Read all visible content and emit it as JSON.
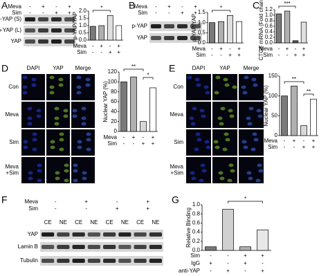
{
  "panels": {
    "A": {
      "letter": "A",
      "blot_conditions": [
        {
          "name": "Meva",
          "signs": [
            "-",
            "+",
            "-",
            "+"
          ]
        },
        {
          "name": "Sim",
          "signs": [
            "-",
            "-",
            "+",
            "+"
          ]
        }
      ],
      "blot_rows": [
        "p-YAP (S)",
        "p-YAP (L)",
        "YAP"
      ]
    },
    "B": {
      "letter": "B",
      "blot_conditions": [
        {
          "name": "Meva",
          "signs": [
            "-",
            "+",
            "-",
            "+"
          ]
        },
        {
          "name": "Sim",
          "signs": [
            "-",
            "-",
            "+",
            "+"
          ]
        }
      ],
      "blot_rows": [
        "p-YAP",
        "YAP"
      ]
    },
    "C": {
      "letter": "C"
    },
    "D": {
      "letter": "D",
      "columns": [
        "DAPI",
        "YAP",
        "Merge"
      ],
      "rows": [
        [
          "Con"
        ],
        [
          "Meva"
        ],
        [
          "Sim"
        ],
        [
          "Meva",
          "+Sim"
        ]
      ]
    },
    "E": {
      "letter": "E",
      "columns": [
        "DAPI",
        "YAP",
        "Merge"
      ],
      "rows": [
        [
          "Con"
        ],
        [
          "Meva"
        ],
        [
          "Sim"
        ],
        [
          "Meva",
          "+Sim"
        ]
      ]
    },
    "F": {
      "letter": "F",
      "blot_conditions": [
        {
          "name": "Meva",
          "signs": [
            "-",
            "+",
            "-",
            "+"
          ]
        },
        {
          "name": "Sim",
          "signs": [
            "-",
            "-",
            "+",
            "+"
          ]
        }
      ],
      "column_labels": [
        "CE",
        "NE",
        "CE",
        "NE",
        "CE",
        "NE",
        "CE",
        "NE"
      ],
      "blot_rows": [
        "YAP",
        "Lamin B",
        "Tubulin"
      ]
    },
    "G": {
      "letter": "G"
    }
  },
  "chart_data": [
    {
      "type": "bar",
      "ylabel": "p-YAP/YAP",
      "values": [
        0.95,
        1.0,
        1.7,
        1.0
      ],
      "colors": [
        "#7a7a7a",
        "#b0b0b0",
        "#e0e0e0",
        "#ffffff"
      ],
      "ylim": [
        0,
        2
      ],
      "yticks": [
        {
          "value": 0,
          "label": "0.0"
        },
        0.5,
        {
          "value": 1,
          "label": "1.0"
        },
        1.5,
        {
          "value": 2,
          "label": "2.0"
        }
      ],
      "conditions": [
        {
          "name": "Meva",
          "signs": [
            "-",
            "+",
            "-",
            "+"
          ]
        },
        {
          "name": "Sim",
          "signs": [
            "-",
            "-",
            "+",
            "+"
          ]
        }
      ],
      "annotations": [
        "*"
      ]
    },
    {
      "type": "bar",
      "ylabel": "p-YAP/YAP",
      "values": [
        1.0,
        1.05,
        1.35,
        1.05
      ],
      "colors": [
        "#7a7a7a",
        "#b0b0b0",
        "#e0e0e0",
        "#ffffff"
      ],
      "ylim": [
        0,
        1.5
      ],
      "yticks": [
        {
          "value": 0,
          "label": "0.0"
        },
        0.5,
        {
          "value": 1,
          "label": "1.0"
        },
        1.5
      ],
      "conditions": [
        {
          "name": "Meva",
          "signs": [
            "-",
            "+",
            "-",
            "+"
          ]
        },
        {
          "name": "Sim",
          "signs": [
            "-",
            "-",
            "+",
            "+"
          ]
        }
      ],
      "annotations": [
        "*"
      ]
    },
    {
      "type": "bar",
      "ylabel": "CTGF mRNA (Fold change)",
      "values": [
        1.05,
        1.15,
        0.08,
        0.75
      ],
      "colors": [
        "#7a7a7a",
        "#b0b0b0",
        "#555555",
        "#e0e0e0"
      ],
      "ylim": [
        0,
        1.2
      ],
      "yticks": [
        {
          "value": 0,
          "label": "0.0"
        },
        0.2,
        0.4,
        0.6,
        0.8,
        {
          "value": 1,
          "label": "1.0"
        },
        1.2
      ],
      "conditions": [
        {
          "name": "Meva",
          "signs": [
            "-",
            "+",
            "-",
            "+"
          ]
        },
        {
          "name": "Sim",
          "signs": [
            "-",
            "-",
            "+",
            "+"
          ]
        }
      ],
      "annotations": [
        "***"
      ]
    },
    {
      "type": "bar",
      "ylabel": "Nuclear YAP (%)",
      "values": [
        100,
        110,
        20,
        88
      ],
      "colors": [
        "#7a7a7a",
        "#b0b0b0",
        "#d8d8d8",
        "#ffffff"
      ],
      "ylim": [
        0,
        120
      ],
      "yticks": [
        0,
        20,
        40,
        60,
        80,
        100,
        120
      ],
      "conditions": [
        {
          "name": "Meva",
          "signs": [
            "-",
            "+",
            "-",
            "+"
          ]
        },
        {
          "name": "Sim",
          "signs": [
            "-",
            "-",
            "+",
            "+"
          ]
        }
      ],
      "annotations": [
        "**",
        "*"
      ]
    },
    {
      "type": "bar",
      "ylabel": "Nuclear YAP (%)",
      "values": [
        100,
        125,
        25,
        92
      ],
      "colors": [
        "#7a7a7a",
        "#b0b0b0",
        "#d8d8d8",
        "#ffffff"
      ],
      "ylim": [
        0,
        150
      ],
      "yticks": [
        0,
        50,
        100,
        150
      ],
      "conditions": [
        {
          "name": "Meva",
          "signs": [
            "-",
            "+",
            "-",
            "+"
          ]
        },
        {
          "name": "Sim",
          "signs": [
            "-",
            "-",
            "+",
            "+"
          ]
        }
      ],
      "annotations": [
        "**",
        "**"
      ]
    },
    {
      "type": "bar",
      "ylabel": "Relative Binding",
      "values": [
        0.08,
        0.9,
        0.08,
        0.45
      ],
      "colors": [
        "#7a7a7a",
        "#d0d0d0",
        "#b0b0b0",
        "#e8e8e8"
      ],
      "ylim": [
        0,
        1
      ],
      "yticks": [
        {
          "value": 0,
          "label": "0.0"
        },
        0.2,
        0.4,
        0.6,
        0.8,
        {
          "value": 1,
          "label": "1.0"
        }
      ],
      "conditions": [
        {
          "name": "Sim",
          "signs": [
            "-",
            "-",
            "+",
            "+"
          ]
        },
        {
          "name": "IgG",
          "signs": [
            "+",
            "-",
            "+",
            "-"
          ]
        },
        {
          "name": "anti-YAP",
          "signs": [
            "-",
            "+",
            "-",
            "+"
          ]
        }
      ],
      "annotations": [
        "*"
      ]
    }
  ]
}
